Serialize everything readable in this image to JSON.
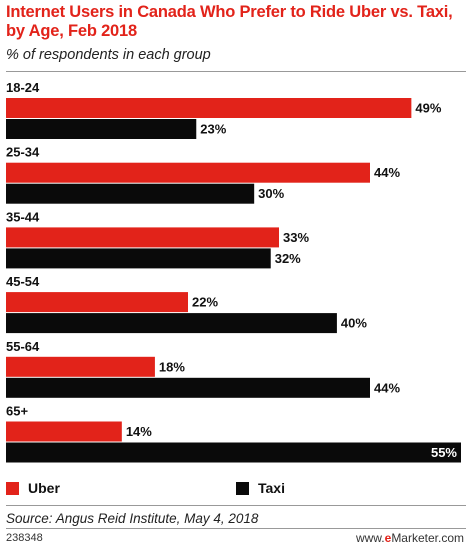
{
  "title": "Internet Users in Canada Who Prefer to Ride Uber vs. Taxi, by Age, Feb 2018",
  "subtitle": "% of respondents in each group",
  "source": "Source: Angus Reid Institute, May 4, 2018",
  "chart_id": "238348",
  "brand": {
    "prefix": "www.",
    "e": "e",
    "rest": "Marketer.com"
  },
  "colors": {
    "uber": "#e2231a",
    "taxi": "#0a0a0a"
  },
  "legend": [
    {
      "label": "Uber",
      "color": "#e2231a"
    },
    {
      "label": "Taxi",
      "color": "#0a0a0a"
    }
  ],
  "chart_data": {
    "type": "bar",
    "orientation": "horizontal",
    "categories": [
      "18-24",
      "25-34",
      "35-44",
      "45-54",
      "55-64",
      "65+"
    ],
    "series": [
      {
        "name": "Uber",
        "values": [
          49,
          44,
          33,
          22,
          18,
          14
        ]
      },
      {
        "name": "Taxi",
        "values": [
          23,
          30,
          32,
          40,
          44,
          55
        ]
      }
    ],
    "value_suffix": "%",
    "xlim": [
      0,
      55
    ],
    "legend_position": "bottom"
  }
}
